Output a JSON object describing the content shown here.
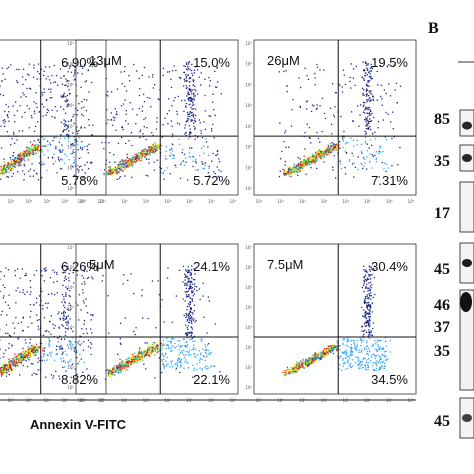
{
  "chart_data": [
    {
      "type": "scatter",
      "dose": "",
      "quadrants": {
        "UL": "",
        "UR": "6.90%",
        "LL": "",
        "LR": "5.78%"
      }
    },
    {
      "type": "scatter",
      "dose": "13μM",
      "quadrants": {
        "UL": "",
        "UR": "15.0%",
        "LL": "",
        "LR": "5.72%"
      }
    },
    {
      "type": "scatter",
      "dose": "26μM",
      "quadrants": {
        "UL": "",
        "UR": "19.5%",
        "LL": "",
        "LR": "7.31%"
      }
    },
    {
      "type": "scatter",
      "dose": "",
      "quadrants": {
        "UL": "",
        "UR": "6.26%",
        "LL": "",
        "LR": "8.82%"
      }
    },
    {
      "type": "scatter",
      "dose": "5μM",
      "quadrants": {
        "UL": "",
        "UR": "24.1%",
        "LL": "",
        "LR": "22.1%"
      }
    },
    {
      "type": "scatter",
      "dose": "7.5μM",
      "quadrants": {
        "UL": "",
        "UR": "30.4%",
        "LL": "",
        "LR": "34.5%"
      }
    }
  ],
  "xlabel": "Annexin V-FITC",
  "axis_ticks": [
    "10⁰",
    "10¹",
    "10²",
    "10³",
    "10⁴",
    "10⁵",
    "10⁶",
    "10⁷"
  ],
  "panel_b": {
    "label": "B",
    "markers": [
      "85",
      "35",
      "17",
      "45",
      "46",
      "37",
      "35",
      "45"
    ]
  },
  "colors": {
    "low": "#1f2a8a",
    "mid": "#33aaff",
    "dense1": "#33cc66",
    "dense2": "#ffee22",
    "peak": "#dd2211"
  }
}
